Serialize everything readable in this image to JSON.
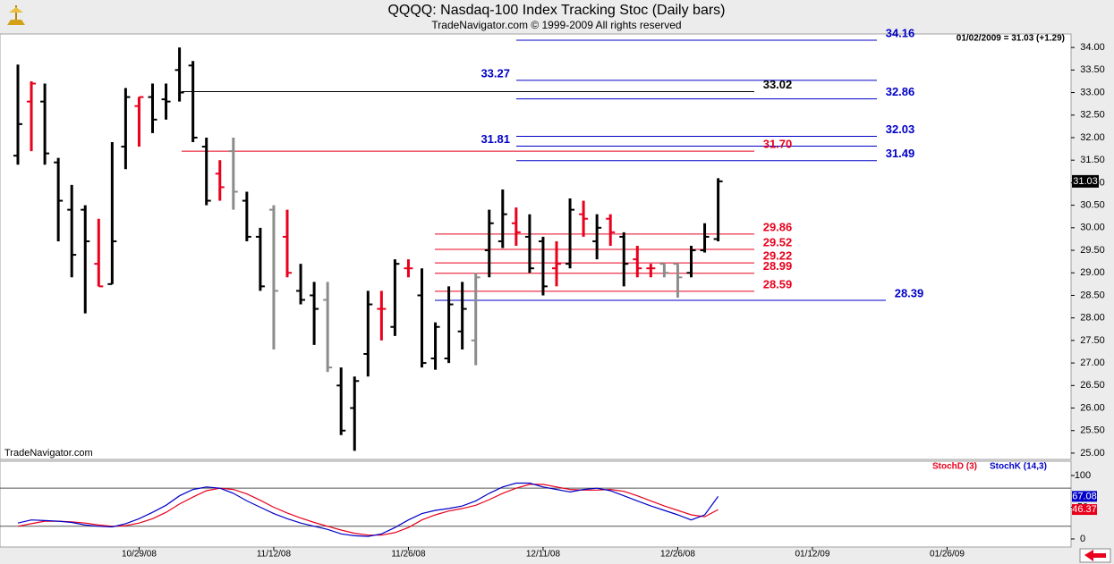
{
  "chart_data": [
    {
      "type": "ohlc",
      "title": "QQQQ:  Nasdaq-100 Index Tracking Stoc  (Daily bars)",
      "subtitle": "TradeNavigator.com © 1999-2009 All rights reserved",
      "annotation": "01/02/2009 = 31.03 (+1.29)",
      "watermark": "TradeNavigator.com",
      "categories": [
        null,
        null,
        null,
        null,
        null,
        null,
        null,
        null,
        null,
        "10/29/08",
        null,
        null,
        null,
        null,
        null,
        null,
        null,
        null,
        null,
        "11/12/08",
        null,
        null,
        null,
        null,
        null,
        null,
        null,
        null,
        null,
        "11/26/08",
        null,
        null,
        null,
        null,
        null,
        null,
        null,
        null,
        null,
        "12/11/08",
        null,
        null,
        null,
        null,
        null,
        null,
        null,
        null,
        null,
        "12/26/08",
        null,
        null,
        null,
        null,
        null,
        null,
        null,
        null,
        null,
        "01/12/09",
        null,
        null,
        null,
        null,
        null,
        null,
        null,
        null,
        null,
        "01/26/09"
      ],
      "open": [
        31.6,
        32.8,
        32.8,
        31.45,
        30.4,
        30.4,
        29.2,
        28.75,
        31.8,
        32.7,
        32.9,
        32.85,
        33.5,
        33.6,
        31.8,
        31.2,
        31.7,
        30.6,
        29.8,
        30.4,
        29.8,
        28.6,
        28.5,
        28.4,
        26.5,
        26.0,
        27.2,
        28.2,
        27.8,
        29.1,
        28.5,
        27.1,
        27.1,
        27.7,
        27.5,
        29.5,
        29.7,
        30.1,
        29.8,
        29.7,
        29.1,
        29.2,
        30.3,
        29.7,
        30.2,
        29.8,
        29.3,
        29.1,
        29.2,
        29.2,
        29.0,
        29.5,
        29.75,
        null,
        null,
        null,
        null,
        null,
        null,
        null,
        null,
        null,
        null,
        null,
        null,
        null,
        null,
        null,
        null,
        null
      ],
      "high": [
        33.62,
        33.25,
        33.2,
        31.55,
        30.95,
        30.5,
        30.2,
        31.9,
        33.1,
        32.9,
        33.2,
        33.2,
        34.0,
        33.7,
        32.0,
        31.5,
        32.0,
        30.8,
        30.0,
        30.5,
        30.4,
        29.2,
        28.8,
        28.8,
        26.9,
        26.7,
        28.6,
        28.6,
        29.3,
        29.3,
        29.1,
        27.9,
        28.7,
        28.8,
        29.0,
        30.4,
        30.85,
        30.45,
        30.3,
        29.8,
        29.7,
        30.65,
        30.6,
        30.3,
        30.3,
        29.9,
        29.6,
        29.2,
        29.2,
        29.2,
        29.6,
        30.1,
        31.1,
        null,
        null,
        null,
        null,
        null,
        null,
        null,
        null,
        null,
        null,
        null,
        null,
        null,
        null,
        null,
        null,
        null
      ],
      "low": [
        31.4,
        31.7,
        31.4,
        29.7,
        28.9,
        28.1,
        28.7,
        28.75,
        31.3,
        31.8,
        32.1,
        32.4,
        32.8,
        31.9,
        30.5,
        30.6,
        30.4,
        29.7,
        28.6,
        27.3,
        28.9,
        28.3,
        27.4,
        26.8,
        25.4,
        25.05,
        26.7,
        27.5,
        27.6,
        28.9,
        26.9,
        26.85,
        27.0,
        27.3,
        26.95,
        28.9,
        29.55,
        29.6,
        29.0,
        28.5,
        28.7,
        29.1,
        29.8,
        29.3,
        29.6,
        28.7,
        28.9,
        28.9,
        28.9,
        28.45,
        28.9,
        29.45,
        29.7,
        null,
        null,
        null,
        null,
        null,
        null,
        null,
        null,
        null,
        null,
        null,
        null,
        null,
        null,
        null,
        null,
        null
      ],
      "close": [
        32.3,
        33.2,
        31.65,
        30.6,
        29.4,
        29.7,
        28.7,
        29.7,
        32.9,
        32.9,
        32.4,
        32.8,
        33.0,
        32.0,
        30.6,
        30.9,
        30.8,
        29.8,
        28.7,
        28.6,
        29.0,
        28.4,
        28.2,
        26.9,
        25.5,
        26.6,
        28.3,
        28.2,
        29.2,
        29.1,
        27.0,
        27.8,
        28.3,
        28.2,
        28.9,
        30.1,
        30.3,
        29.9,
        29.1,
        28.7,
        29.2,
        30.4,
        30.2,
        30.0,
        29.9,
        29.2,
        29.1,
        29.1,
        29.0,
        28.9,
        29.5,
        29.8,
        31.03,
        null,
        null,
        null,
        null,
        null,
        null,
        null,
        null,
        null,
        null,
        null,
        null,
        null,
        null,
        null,
        null,
        null
      ],
      "bar_colors": [
        "#000000",
        "#e8001c",
        "#000000",
        "#000000",
        "#000000",
        "#000000",
        "#e8001c",
        "#000000",
        "#000000",
        "#e8001c",
        "#000000",
        "#000000",
        "#000000",
        "#000000",
        "#000000",
        "#e8001c",
        "#8c8c8c",
        "#000000",
        "#000000",
        "#8c8c8c",
        "#e8001c",
        "#000000",
        "#000000",
        "#8c8c8c",
        "#000000",
        "#000000",
        "#000000",
        "#e8001c",
        "#000000",
        "#e8001c",
        "#000000",
        "#000000",
        "#000000",
        "#000000",
        "#8c8c8c",
        "#000000",
        "#000000",
        "#e8001c",
        "#000000",
        "#000000",
        "#e8001c",
        "#000000",
        "#e8001c",
        "#000000",
        "#e8001c",
        "#000000",
        "#e8001c",
        "#e8001c",
        "#8c8c8c",
        "#8c8c8c",
        "#000000",
        "#000000",
        "#000000",
        null,
        null,
        null,
        null,
        null,
        null,
        null,
        null,
        null,
        null,
        null,
        null,
        null,
        null,
        null,
        null,
        null
      ],
      "ylim": [
        24.86,
        34.3
      ],
      "yticks": [
        {
          "value": 25,
          "label": "25.00"
        },
        {
          "value": 25.5,
          "label": "25.50"
        },
        {
          "value": 26,
          "label": "26.00"
        },
        {
          "value": 26.5,
          "label": "26.50"
        },
        {
          "value": 27,
          "label": "27.00"
        },
        {
          "value": 27.5,
          "label": "27.50"
        },
        {
          "value": 28,
          "label": "28.00"
        },
        {
          "value": 28.5,
          "label": "28.50"
        },
        {
          "value": 29,
          "label": "29.00"
        },
        {
          "value": 29.5,
          "label": "29.50"
        },
        {
          "value": 30,
          "label": "30.00"
        },
        {
          "value": 30.5,
          "label": "30.50"
        },
        {
          "value": 31,
          "label": "31.00"
        },
        {
          "value": 31.5,
          "label": "31.50"
        },
        {
          "value": 32,
          "label": "32.00"
        },
        {
          "value": 32.5,
          "label": "32.50"
        },
        {
          "value": 33,
          "label": "33.00"
        },
        {
          "value": 33.5,
          "label": "33.50"
        },
        {
          "value": 34,
          "label": "34.00"
        }
      ],
      "levels": [
        {
          "value": 34.16,
          "color": "#0000c8"
        },
        {
          "value": 33.27,
          "color": "#0000c8"
        },
        {
          "value": 33.02,
          "color": "#000000"
        },
        {
          "value": 32.86,
          "color": "#0000c8"
        },
        {
          "value": 32.03,
          "color": "#0000c8"
        },
        {
          "value": 31.81,
          "color": "#0000c8"
        },
        {
          "value": 31.7,
          "label": "31.70",
          "color": "#e8001c"
        },
        {
          "value": 31.49,
          "color": "#0000c8"
        },
        {
          "value": 29.86,
          "color": "#e8001c"
        },
        {
          "value": 29.52,
          "color": "#e8001c"
        },
        {
          "value": 29.22,
          "color": "#e8001c"
        },
        {
          "value": 28.99,
          "color": "#e8001c"
        },
        {
          "value": 28.59,
          "color": "#e8001c"
        },
        {
          "value": 28.39,
          "color": "#0000c8"
        }
      ]
    },
    {
      "type": "line",
      "series": [
        {
          "name": "StochD (3)",
          "color": "#e8001c",
          "values": [
            20,
            24,
            28,
            28,
            27,
            25,
            22,
            20,
            21,
            25,
            32,
            42,
            55,
            66,
            76,
            80,
            78,
            71,
            61,
            50,
            41,
            33,
            26,
            20,
            14,
            9,
            6,
            6,
            10,
            18,
            30,
            38,
            44,
            48,
            53,
            62,
            72,
            80,
            86,
            86,
            82,
            78,
            77,
            77,
            78,
            75,
            68,
            60,
            52,
            45,
            38,
            35,
            46.37,
            null,
            null,
            null,
            null,
            null,
            null,
            null,
            null,
            null,
            null,
            null,
            null,
            null,
            null,
            null,
            null,
            null
          ]
        },
        {
          "name": "StochK (14,3)",
          "color": "#0000c8",
          "values": [
            25,
            30,
            29,
            28,
            26,
            22,
            20,
            19,
            24,
            32,
            42,
            53,
            68,
            78,
            82,
            80,
            72,
            60,
            50,
            40,
            32,
            25,
            20,
            15,
            8,
            5,
            4,
            8,
            18,
            30,
            40,
            45,
            48,
            52,
            60,
            72,
            82,
            88,
            88,
            82,
            78,
            74,
            78,
            80,
            76,
            68,
            60,
            52,
            45,
            38,
            30,
            38,
            67.08,
            null,
            null,
            null,
            null,
            null,
            null,
            null,
            null,
            null,
            null,
            null,
            null,
            null,
            null,
            null,
            null,
            null
          ]
        }
      ],
      "ylim": [
        -12.7,
        122.5
      ],
      "yticks": [
        0,
        50,
        100
      ],
      "ref_lines": [
        20,
        80
      ]
    }
  ]
}
